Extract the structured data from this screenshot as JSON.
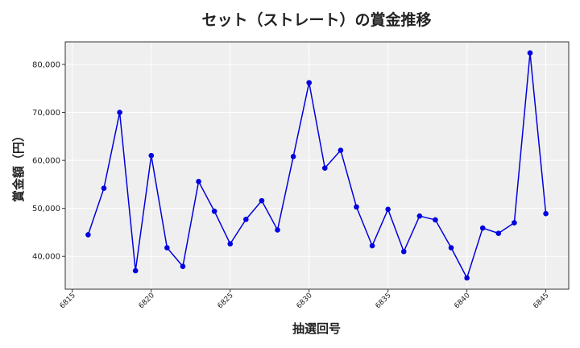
{
  "chart_data": {
    "type": "line",
    "title": "セット（ストレート）の賞金推移",
    "xlabel": "抽選回号",
    "ylabel": "賞金額（円）",
    "x_ticks": [
      6815,
      6820,
      6825,
      6830,
      6835,
      6840,
      6845
    ],
    "x_tick_labels": [
      "6815",
      "6820",
      "6825",
      "6830",
      "6835",
      "6840",
      "6845"
    ],
    "y_ticks": [
      40000,
      50000,
      60000,
      70000,
      80000
    ],
    "y_tick_labels": [
      "40,000",
      "50,000",
      "60,000",
      "70,000",
      "80,000"
    ],
    "xlim": [
      6814.55,
      6846.45
    ],
    "ylim": [
      33150,
      84700
    ],
    "grid": true,
    "series": [
      {
        "color": "#0000e0",
        "x": [
          6816,
          6817,
          6818,
          6819,
          6820,
          6821,
          6822,
          6823,
          6824,
          6825,
          6826,
          6827,
          6828,
          6829,
          6830,
          6831,
          6832,
          6833,
          6834,
          6835,
          6836,
          6837,
          6838,
          6839,
          6840,
          6841,
          6842,
          6843,
          6844,
          6845
        ],
        "values": [
          44500,
          54200,
          70000,
          37000,
          61000,
          41800,
          37900,
          55600,
          49400,
          42600,
          47700,
          51600,
          45500,
          60800,
          76200,
          58400,
          62100,
          50300,
          42200,
          49800,
          41000,
          48400,
          47600,
          41800,
          35500,
          45900,
          44800,
          47000,
          82400,
          48900
        ]
      }
    ]
  }
}
